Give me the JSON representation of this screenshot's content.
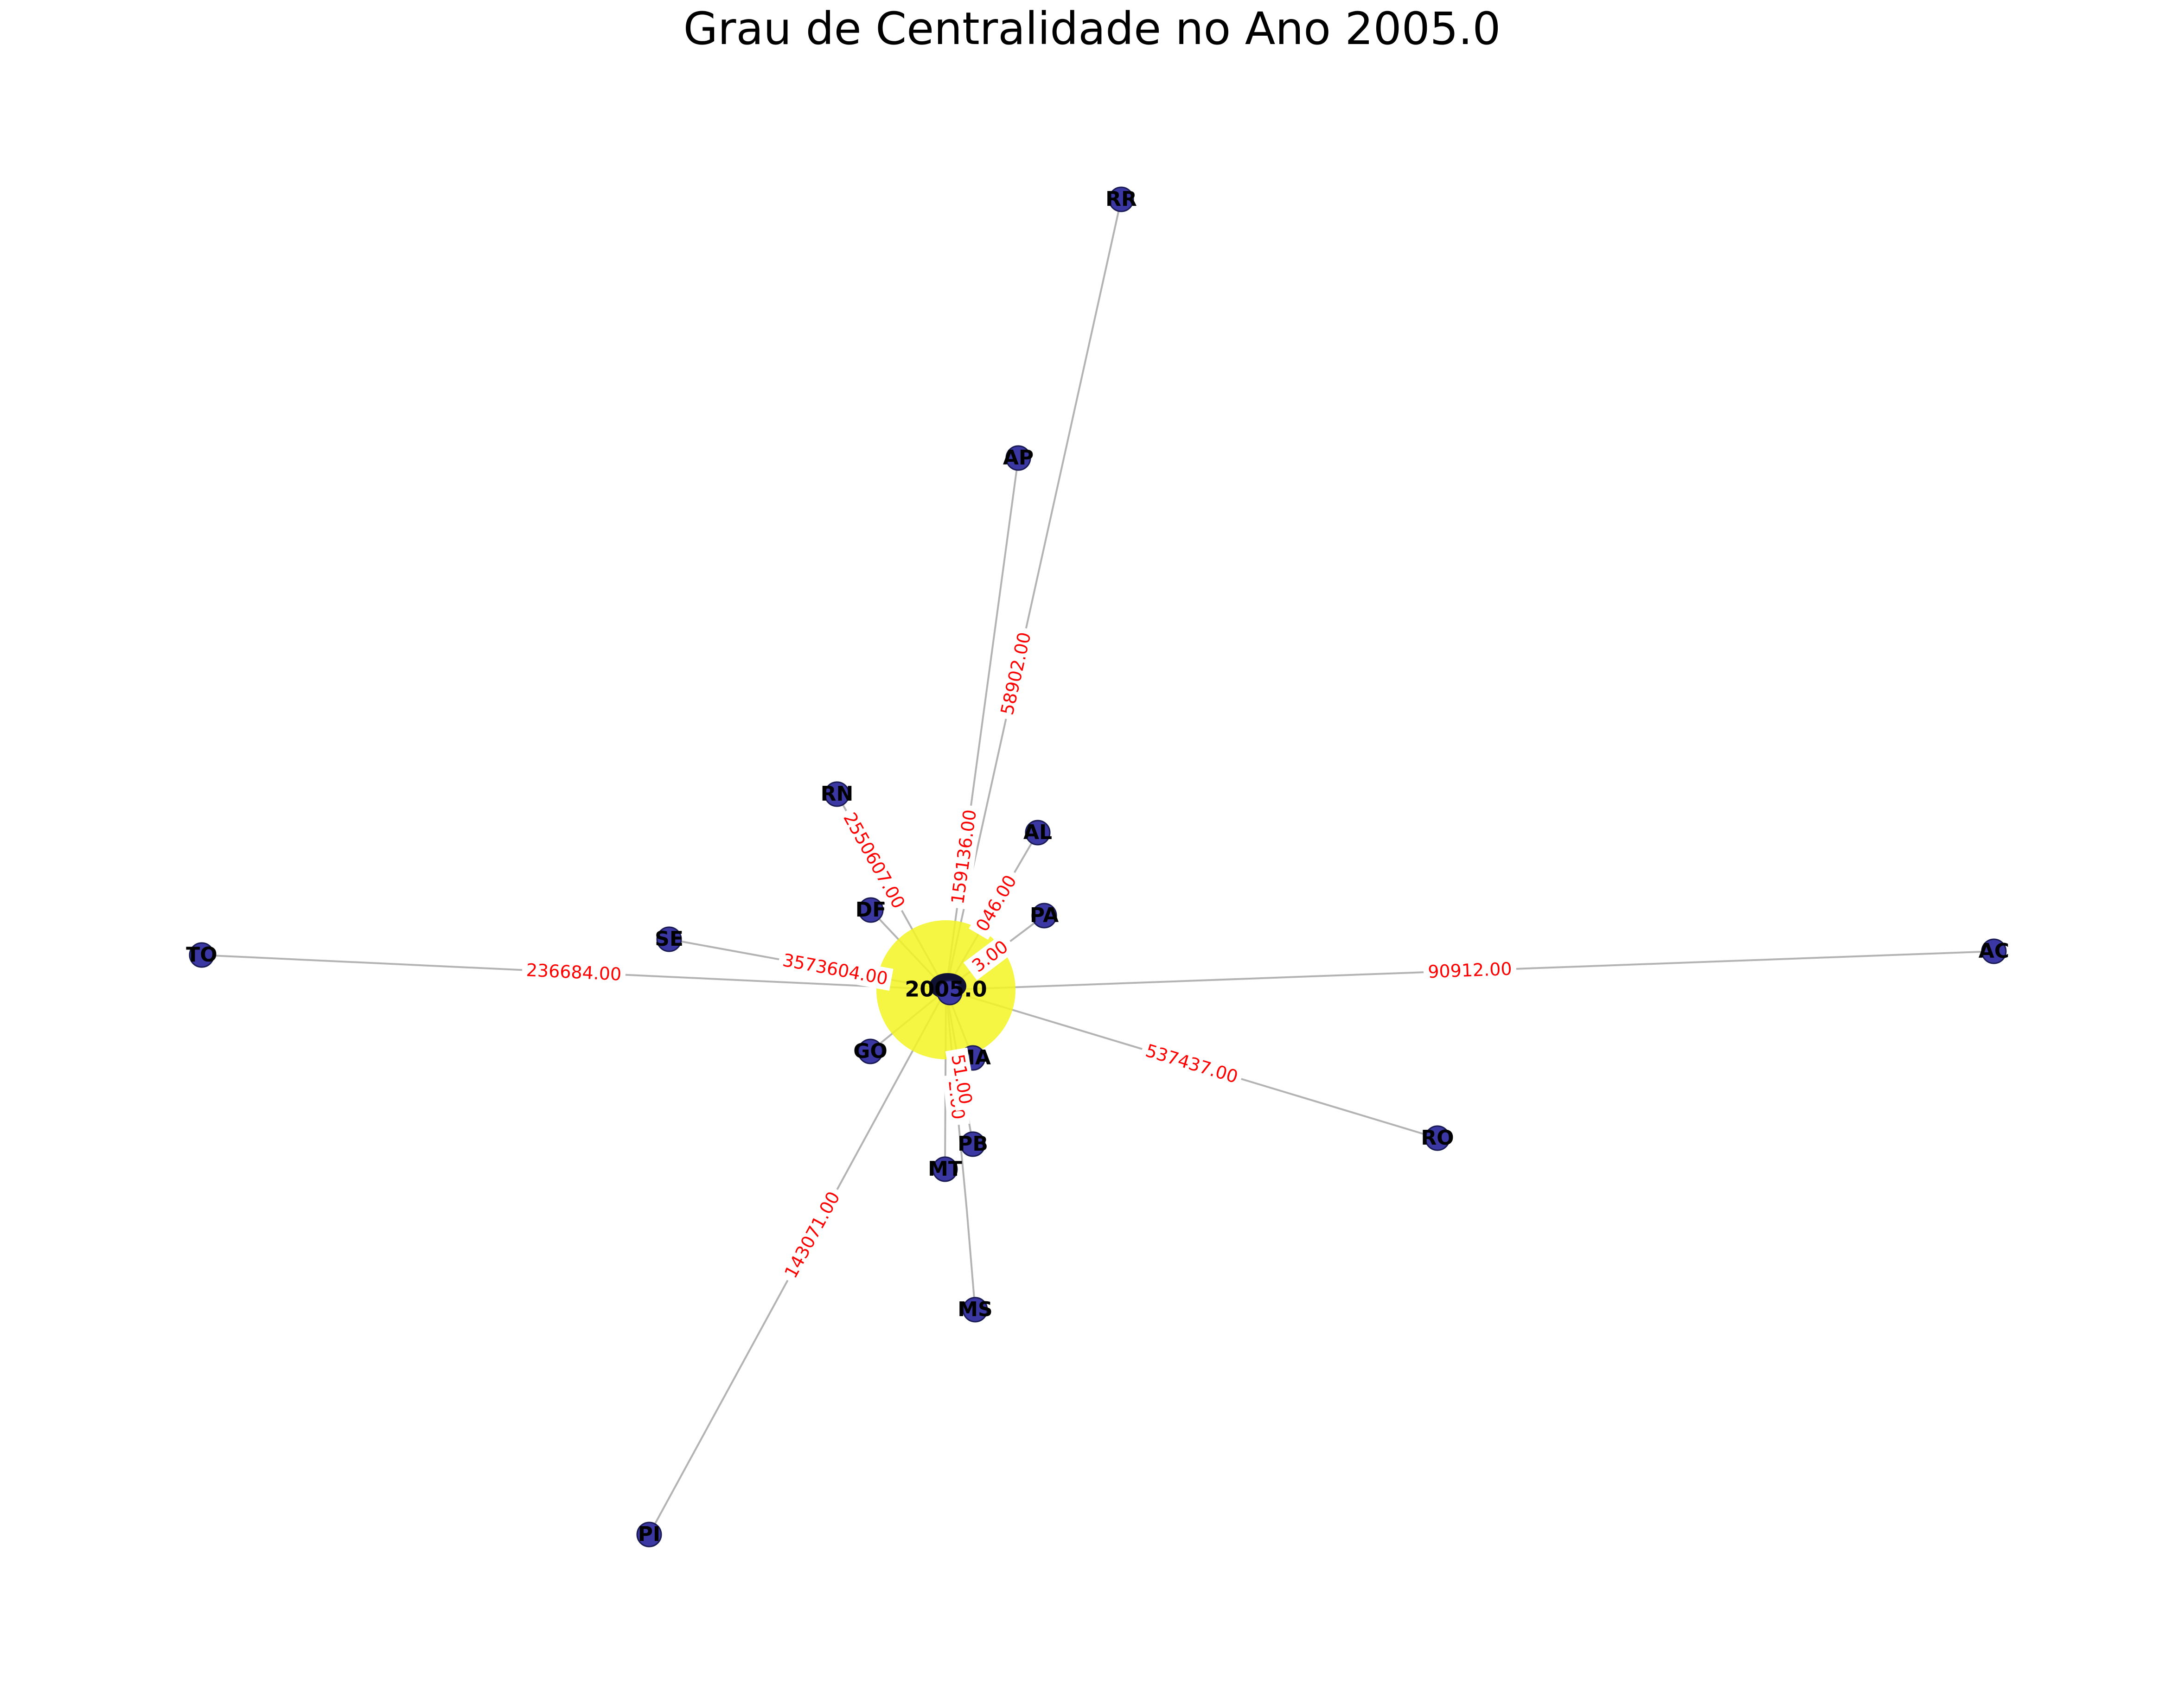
{
  "title": "Grau de Centralidade no Ano 2005.0",
  "colors": {
    "node": "#3b38a4",
    "hub": "#f2f522",
    "edge": "#b3b3b3",
    "edge_label": "#ff0000",
    "edge_label_inner": "#e8d040"
  },
  "hub": {
    "id": "hub",
    "label": "2005.0"
  },
  "nodes": [
    {
      "id": "RR",
      "label": "RR"
    },
    {
      "id": "AP",
      "label": "AP"
    },
    {
      "id": "RN",
      "label": "RN"
    },
    {
      "id": "AL",
      "label": "AL"
    },
    {
      "id": "DF",
      "label": "DF"
    },
    {
      "id": "PA",
      "label": "PA"
    },
    {
      "id": "SE",
      "label": "SE"
    },
    {
      "id": "TO",
      "label": "TO"
    },
    {
      "id": "AC",
      "label": "AC"
    },
    {
      "id": "GO",
      "label": "GO"
    },
    {
      "id": "MA",
      "label": "MA"
    },
    {
      "id": "RO",
      "label": "RO"
    },
    {
      "id": "PB",
      "label": "PB"
    },
    {
      "id": "MT",
      "label": "MT"
    },
    {
      "id": "MS",
      "label": "MS"
    },
    {
      "id": "PI",
      "label": "PI"
    }
  ],
  "edges": [
    {
      "target": "RR",
      "label": "58902.00"
    },
    {
      "target": "AP",
      "label": "159136.00"
    },
    {
      "target": "RN",
      "label": "2550607.00"
    },
    {
      "target": "AL",
      "label": "046.00"
    },
    {
      "target": "PA",
      "label": "3.00"
    },
    {
      "target": "SE",
      "label": "3573604.00"
    },
    {
      "target": "TO",
      "label": "236684.00"
    },
    {
      "target": "AC",
      "label": "90912.00"
    },
    {
      "target": "RO",
      "label": "537437.00"
    },
    {
      "target": "PI",
      "label": "143071.00"
    },
    {
      "target": "MS",
      "label": "2.00"
    },
    {
      "target": "PB",
      "label": "51.00"
    }
  ]
}
